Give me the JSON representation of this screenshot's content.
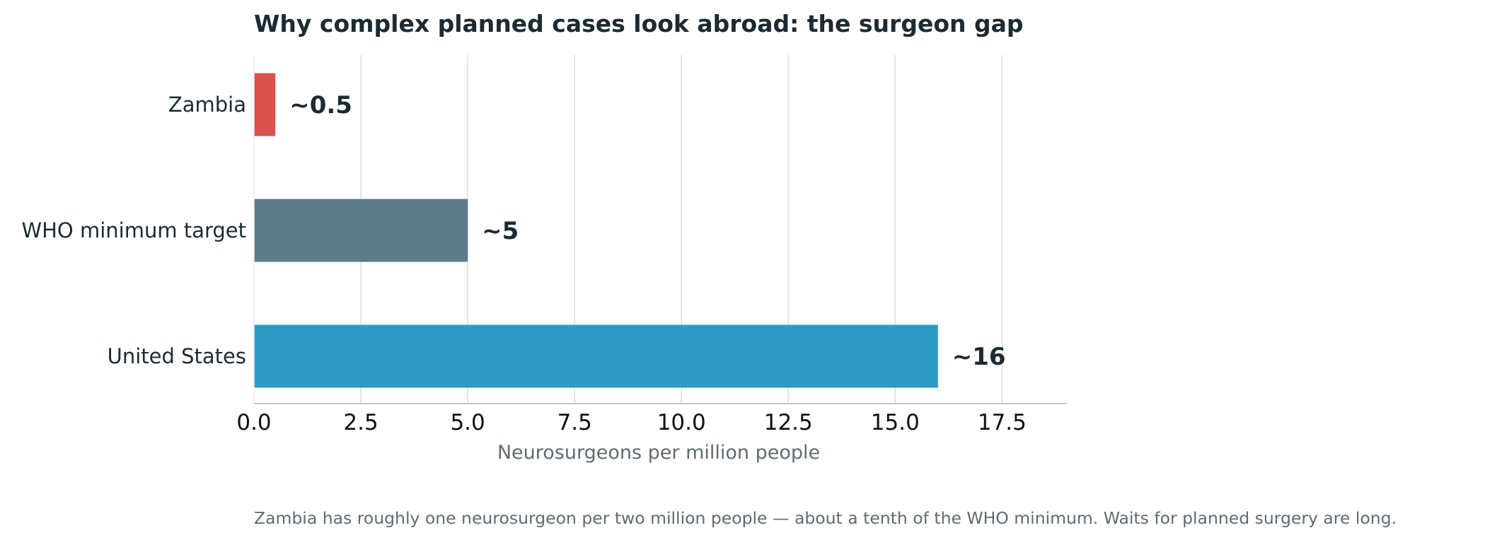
{
  "chart_data": {
    "type": "bar",
    "orientation": "horizontal",
    "title": "Why complex planned cases look abroad: the surgeon gap",
    "xlabel": "Neurosurgeons per million people",
    "ylabel": "",
    "categories": [
      "Zambia",
      "WHO minimum target",
      "United States"
    ],
    "values": [
      0.5,
      5,
      16
    ],
    "value_labels": [
      "~0.5",
      "~5",
      "~16"
    ],
    "colors": [
      "#dc524f",
      "#5d7a88",
      "#2e9bc6"
    ],
    "xlim": [
      0,
      19
    ],
    "xticks": [
      0,
      2.5,
      5,
      7.5,
      10,
      12.5,
      15,
      17.5
    ],
    "xtick_labels": [
      "0.0",
      "2.5",
      "5.0",
      "7.5",
      "10.0",
      "12.5",
      "15.0",
      "17.5"
    ],
    "grid": "vertical",
    "caption": "Zambia has roughly one neurosurgeon per two million people — about a tenth of the WHO minimum. Waits for planned surgery are long."
  }
}
